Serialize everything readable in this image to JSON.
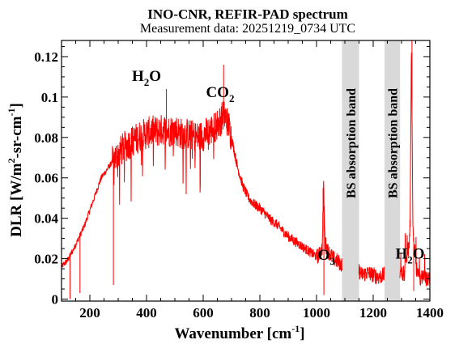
{
  "chart_data": {
    "type": "line",
    "title": "INO-CNR, REFIR-PAD spectrum",
    "subtitle": "Measurement data: 20251219_0734 UTC",
    "xlabel": "Wavenumber [cm",
    "xlabel_sup": "-1",
    "xlabel_end": "]",
    "ylabel": "DLR [W/m",
    "ylabel_sup1": "2",
    "ylabel_mid": "-sr-cm",
    "ylabel_sup2": "-1",
    "ylabel_end": "]",
    "xlim": [
      100,
      1400
    ],
    "ylim": [
      -0.001,
      0.128
    ],
    "xticks": [
      "200",
      "400",
      "600",
      "800",
      "1000",
      "1200",
      "1400"
    ],
    "yticks": [
      "0",
      "0.02",
      "0.04",
      "0.06",
      "0.08",
      "0.1",
      "0.12"
    ],
    "grid": false,
    "line_color": "#ff0000",
    "band_color": "#d9d9d9",
    "bands": [
      {
        "label": "BS absorption band",
        "x_start": 1090,
        "x_end": 1150
      },
      {
        "label": "BS absorption band",
        "x_start": 1240,
        "x_end": 1295
      }
    ],
    "annotations": [
      {
        "base": "H",
        "sub": "2",
        "tail": "O",
        "x": 400,
        "y": 0.108
      },
      {
        "base": "CO",
        "sub": "2",
        "tail": "",
        "x": 660,
        "y": 0.1
      },
      {
        "base": "O",
        "sub": "3",
        "tail": "",
        "x": 1035,
        "y": 0.0195
      },
      {
        "base": "H",
        "sub": "2",
        "tail": "O",
        "x": 1330,
        "y": 0.02
      }
    ],
    "series": [
      {
        "x": [
          100,
          120,
          140,
          160,
          180,
          200,
          220,
          240,
          260,
          280,
          300,
          320,
          340,
          360,
          380,
          400,
          420,
          440,
          460,
          480,
          500,
          520,
          540,
          560,
          580,
          600,
          620,
          640,
          660,
          670,
          680,
          690,
          700,
          720,
          740,
          760,
          780,
          800,
          820,
          840,
          860,
          880,
          900,
          920,
          940,
          960,
          980,
          1000,
          1010,
          1020,
          1025,
          1030,
          1040,
          1050,
          1060,
          1070,
          1080,
          1090,
          1100,
          1150,
          1160,
          1180,
          1200,
          1220,
          1240,
          1300,
          1310,
          1320,
          1330,
          1335,
          1340,
          1350,
          1360,
          1380,
          1400
        ],
        "y": [
          0.016,
          0.019,
          0.024,
          0.03,
          0.036,
          0.044,
          0.052,
          0.06,
          0.064,
          0.068,
          0.072,
          0.075,
          0.077,
          0.079,
          0.081,
          0.082,
          0.083,
          0.083,
          0.084,
          0.083,
          0.084,
          0.082,
          0.082,
          0.081,
          0.08,
          0.081,
          0.083,
          0.085,
          0.088,
          0.091,
          0.09,
          0.086,
          0.08,
          0.066,
          0.056,
          0.05,
          0.047,
          0.045,
          0.042,
          0.039,
          0.037,
          0.034,
          0.031,
          0.029,
          0.027,
          0.025,
          0.023,
          0.021,
          0.022,
          0.025,
          0.056,
          0.028,
          0.024,
          0.022,
          0.02,
          0.019,
          0.018,
          0.017,
          0.015,
          0.014,
          0.012,
          0.013,
          0.012,
          0.011,
          0.012,
          0.013,
          0.012,
          0.022,
          0.03,
          0.128,
          0.035,
          0.019,
          0.011,
          0.01,
          0.01
        ]
      }
    ]
  }
}
